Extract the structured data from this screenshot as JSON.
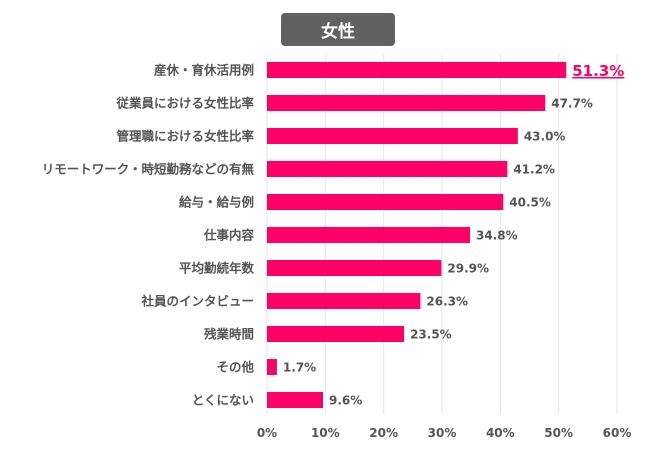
{
  "chart_data": {
    "type": "bar",
    "orientation": "horizontal",
    "title": "女性",
    "categories": [
      "産休・育休活用例",
      "従業員における女性比率",
      "管理職における女性比率",
      "リモートワーク・時短勤務などの有無",
      "給与・給与例",
      "仕事内容",
      "平均勤続年数",
      "社員のインタビュー",
      "残業時間",
      "その他",
      "とくにない"
    ],
    "values": [
      51.3,
      47.7,
      43.0,
      41.2,
      40.5,
      34.8,
      29.9,
      26.3,
      23.5,
      1.7,
      9.6
    ],
    "value_labels": [
      "51.3%",
      "47.7%",
      "43.0%",
      "41.2%",
      "40.5%",
      "34.8%",
      "29.9%",
      "26.3%",
      "23.5%",
      "1.7%",
      "9.6%"
    ],
    "highlighted_index": 0,
    "xlim": [
      0,
      60
    ],
    "xticks": [
      "0%",
      "10%",
      "20%",
      "30%",
      "40%",
      "50%",
      "60%"
    ],
    "xlabel": "",
    "ylabel": "",
    "grid": "vertical",
    "colors": {
      "bar": "#ff0066",
      "highlight_label": "#ff0066",
      "label": "#555555",
      "title_bg": "#616161",
      "grid": "#e6e6e6"
    }
  }
}
